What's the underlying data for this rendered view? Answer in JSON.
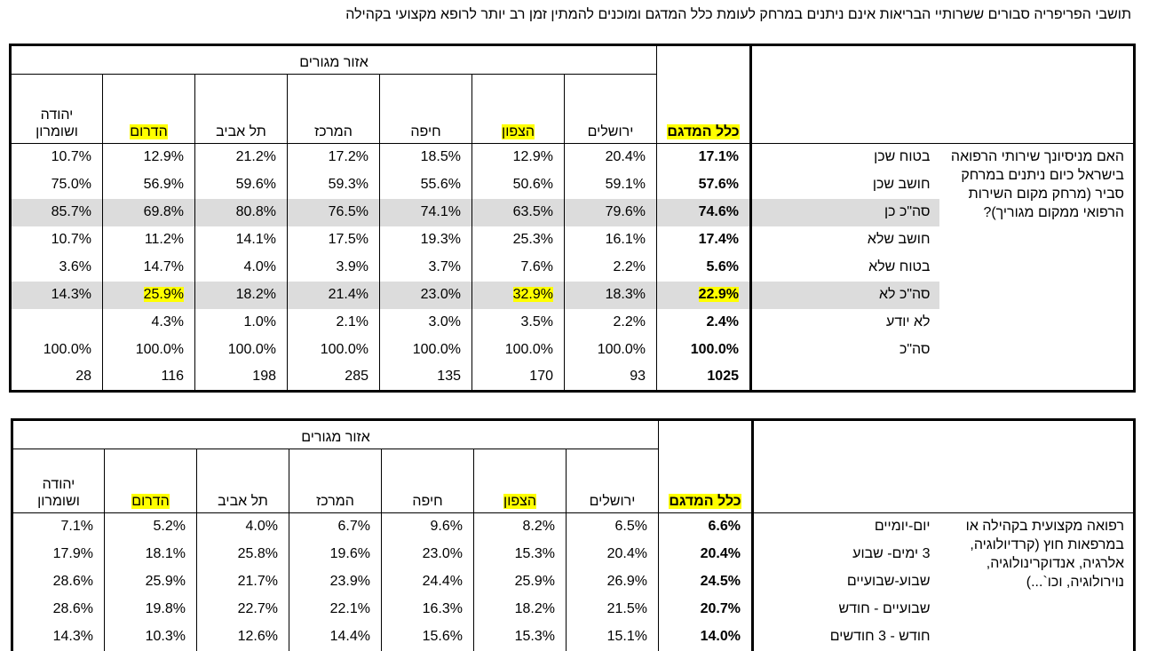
{
  "page": {
    "title": "תושבי הפריפריה סבורים ששרותיי הבריאות אינם ניתנים במרחק לעומת כלל המדגם ומוכנים להמתין זמן רב יותר לרופא מקצועי בקהילה"
  },
  "columns": {
    "area_group": "אזור מגורים",
    "total": "כלל המדגם",
    "jerusalem": "ירושלים",
    "north": "הצפון",
    "haifa": "חיפה",
    "center": "המרכז",
    "telaviv": "תל אביב",
    "south": "הדרום",
    "judea_line1": "יהודה",
    "judea_line2": "ושומרון"
  },
  "table1": {
    "question": "האם מניסיונך שירותי הרפואה בישראל כיום ניתנים במרחק סביר (מרחק מקום השירות הרפואי ממקום מגוריך)?",
    "rows": [
      {
        "label": "בטוח שכן",
        "total": "17.1%",
        "jerusalem": "20.4%",
        "north": "12.9%",
        "haifa": "18.5%",
        "center": "17.2%",
        "telaviv": "21.2%",
        "south": "12.9%",
        "judea": "10.7%"
      },
      {
        "label": "חושב שכן",
        "total": "57.6%",
        "jerusalem": "59.1%",
        "north": "50.6%",
        "haifa": "55.6%",
        "center": "59.3%",
        "telaviv": "59.6%",
        "south": "56.9%",
        "judea": "75.0%"
      },
      {
        "label": "סה\"כ כן",
        "total": "74.6%",
        "jerusalem": "79.6%",
        "north": "63.5%",
        "haifa": "74.1%",
        "center": "76.5%",
        "telaviv": "80.8%",
        "south": "69.8%",
        "judea": "85.7%"
      },
      {
        "label": "חושב שלא",
        "total": "17.4%",
        "jerusalem": "16.1%",
        "north": "25.3%",
        "haifa": "19.3%",
        "center": "17.5%",
        "telaviv": "14.1%",
        "south": "11.2%",
        "judea": "10.7%"
      },
      {
        "label": "בטוח שלא",
        "total": "5.6%",
        "jerusalem": "2.2%",
        "north": "7.6%",
        "haifa": "3.7%",
        "center": "3.9%",
        "telaviv": "4.0%",
        "south": "14.7%",
        "judea": "3.6%"
      },
      {
        "label": "סה\"כ לא",
        "total": "22.9%",
        "jerusalem": "18.3%",
        "north": "32.9%",
        "haifa": "23.0%",
        "center": "21.4%",
        "telaviv": "18.2%",
        "south": "25.9%",
        "judea": "14.3%"
      },
      {
        "label": "לא יודע",
        "total": "2.4%",
        "jerusalem": "2.2%",
        "north": "3.5%",
        "haifa": "3.0%",
        "center": "2.1%",
        "telaviv": "1.0%",
        "south": "4.3%",
        "judea": ""
      },
      {
        "label": "סה\"כ",
        "total": "100.0%",
        "jerusalem": "100.0%",
        "north": "100.0%",
        "haifa": "100.0%",
        "center": "100.0%",
        "telaviv": "100.0%",
        "south": "100.0%",
        "judea": "100.0%"
      },
      {
        "label": "",
        "total": "1025",
        "jerusalem": "93",
        "north": "170",
        "haifa": "135",
        "center": "285",
        "telaviv": "198",
        "south": "116",
        "judea": "28"
      }
    ]
  },
  "table2": {
    "question": "רפואה מקצועית בקהילה או במרפאות חוץ (קרדיולוגיה, אלרגיה, אנדוקרינולוגיה, נוירולוגיה, וכו`...)",
    "rows": [
      {
        "label": "יום-יומיים",
        "total": "6.6%",
        "jerusalem": "6.5%",
        "north": "8.2%",
        "haifa": "9.6%",
        "center": "6.7%",
        "telaviv": "4.0%",
        "south": "5.2%",
        "judea": "7.1%"
      },
      {
        "label": "3 ימים- שבוע",
        "total": "20.4%",
        "jerusalem": "20.4%",
        "north": "15.3%",
        "haifa": "23.0%",
        "center": "19.6%",
        "telaviv": "25.8%",
        "south": "18.1%",
        "judea": "17.9%"
      },
      {
        "label": "שבוע-שבועיים",
        "total": "24.5%",
        "jerusalem": "26.9%",
        "north": "25.9%",
        "haifa": "24.4%",
        "center": "23.9%",
        "telaviv": "21.7%",
        "south": "25.9%",
        "judea": "28.6%"
      },
      {
        "label": "שבועיים - חודש",
        "total": "20.7%",
        "jerusalem": "21.5%",
        "north": "18.2%",
        "haifa": "16.3%",
        "center": "22.1%",
        "telaviv": "22.7%",
        "south": "19.8%",
        "judea": "28.6%"
      },
      {
        "label": "חודש - 3 חודשים",
        "total": "14.0%",
        "jerusalem": "15.1%",
        "north": "15.3%",
        "haifa": "15.6%",
        "center": "14.4%",
        "telaviv": "12.6%",
        "south": "10.3%",
        "judea": "14.3%"
      }
    ]
  }
}
